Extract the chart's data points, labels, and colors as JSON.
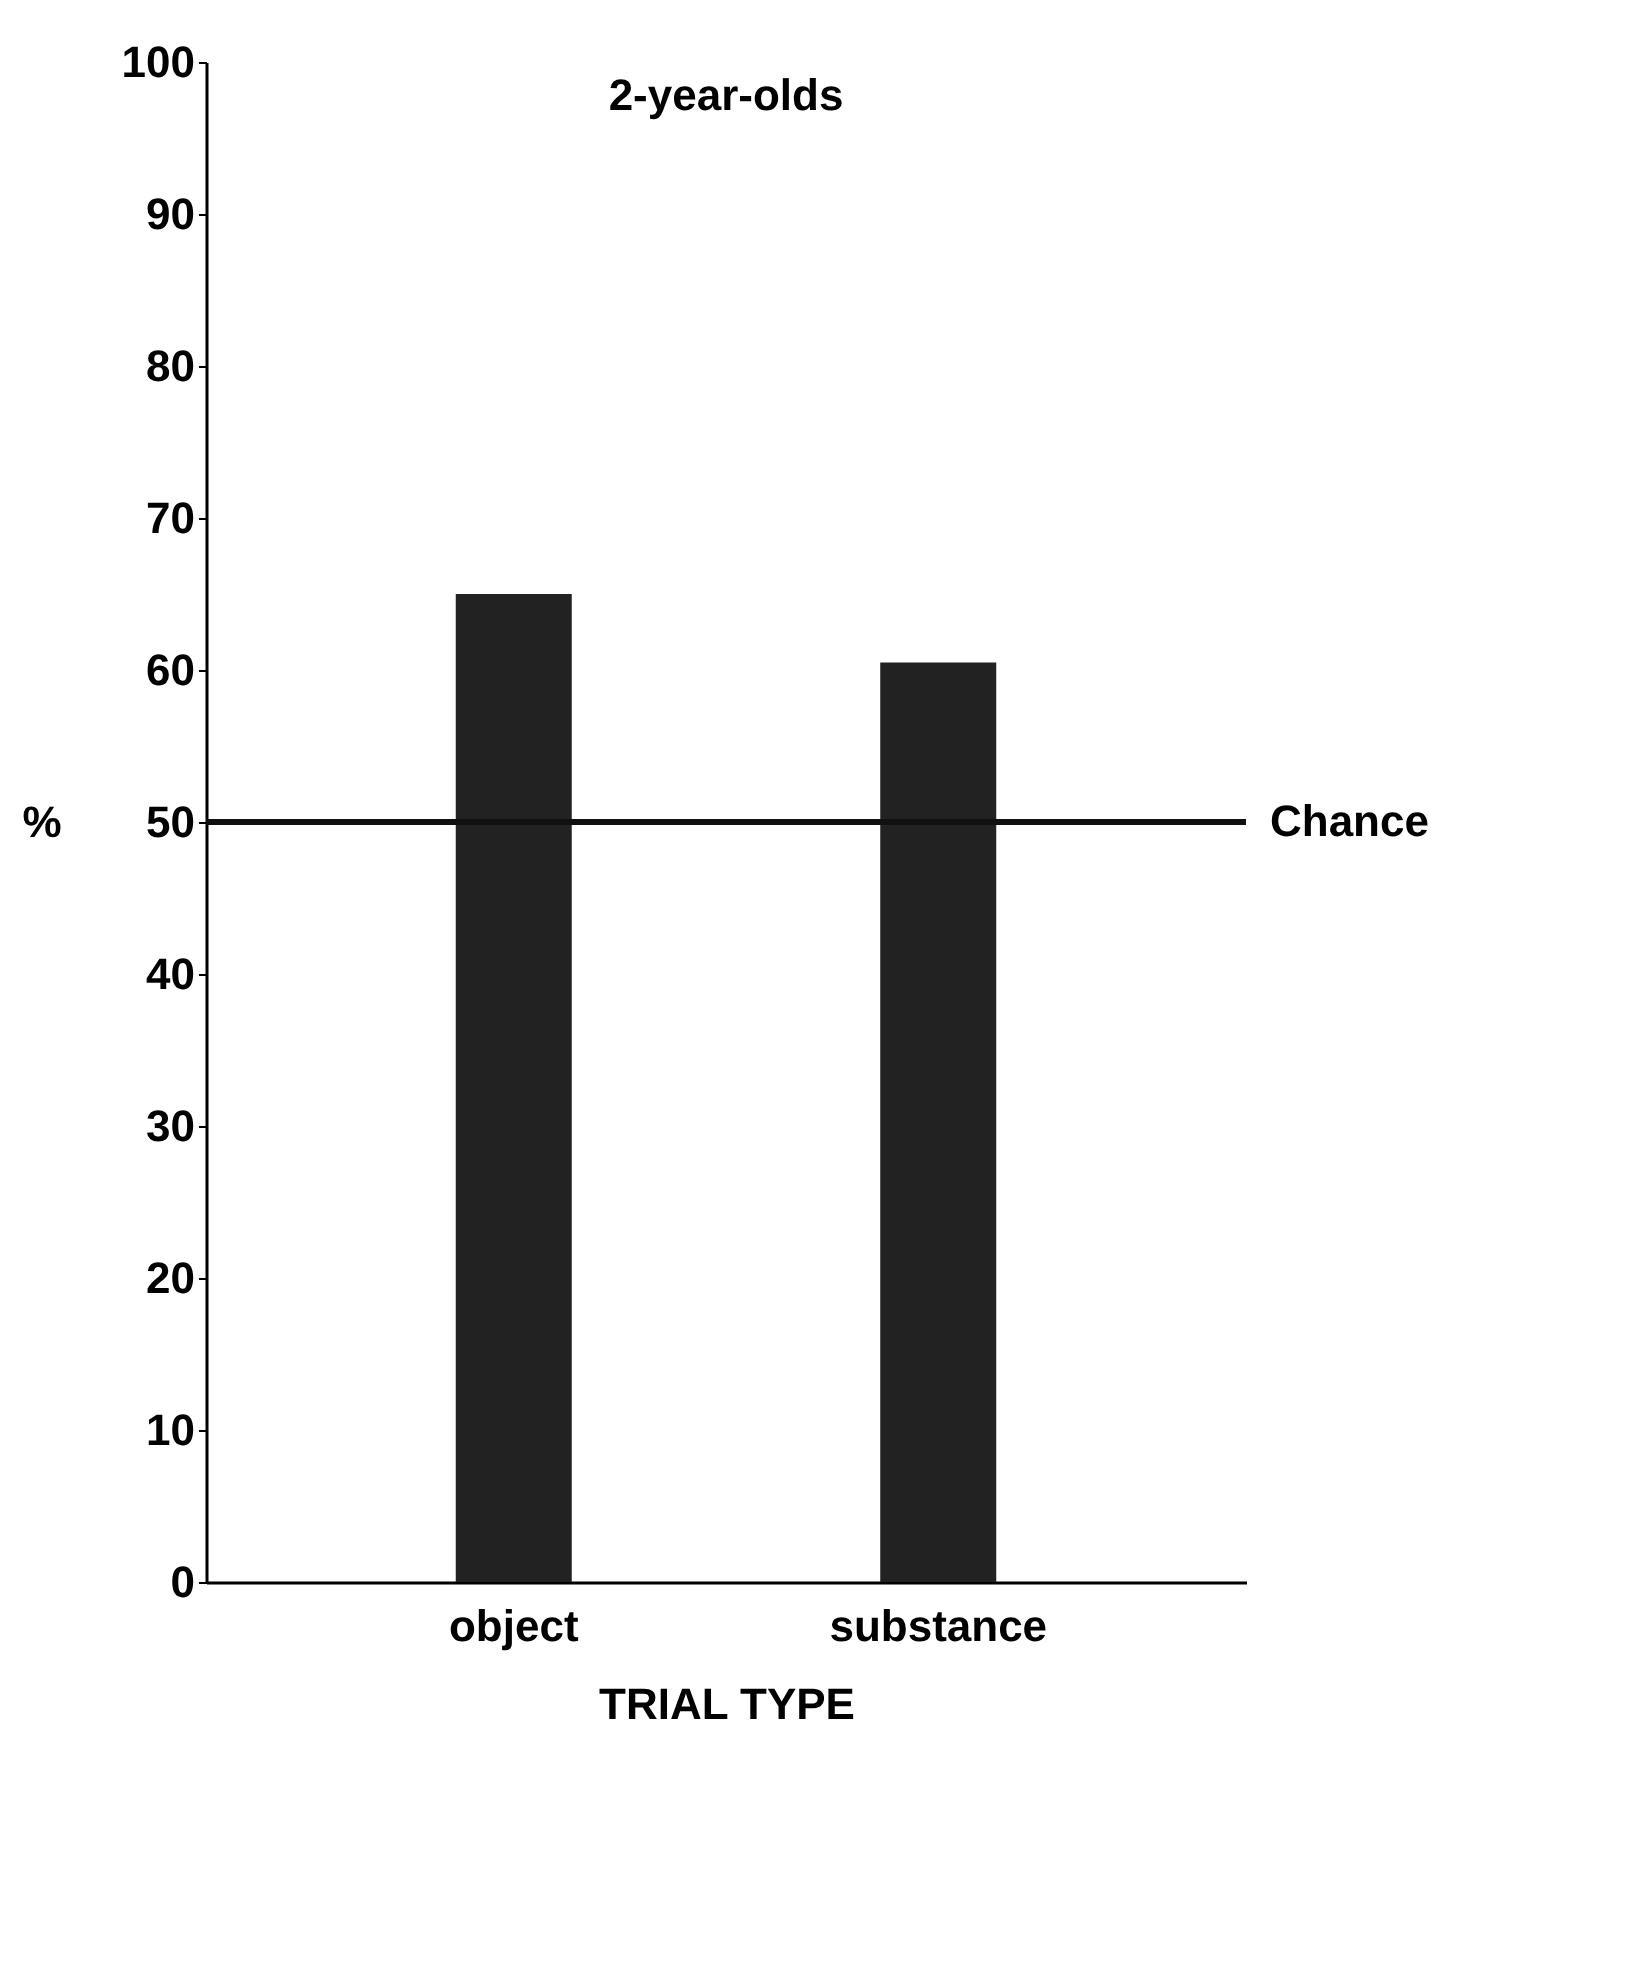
{
  "chart_data": {
    "type": "bar",
    "title": "2-year-olds",
    "xlabel": "TRIAL TYPE",
    "ylabel": "%",
    "categories": [
      "object",
      "substance"
    ],
    "values": [
      65,
      60.5
    ],
    "color": "#222222",
    "ylim": [
      0,
      100
    ],
    "yticks": [
      0,
      10,
      20,
      30,
      40,
      50,
      60,
      70,
      80,
      90,
      100
    ],
    "ref_lines": [
      {
        "axis": "y",
        "value": 50,
        "label": "Chance",
        "color": "#111111"
      }
    ],
    "grid": false
  }
}
